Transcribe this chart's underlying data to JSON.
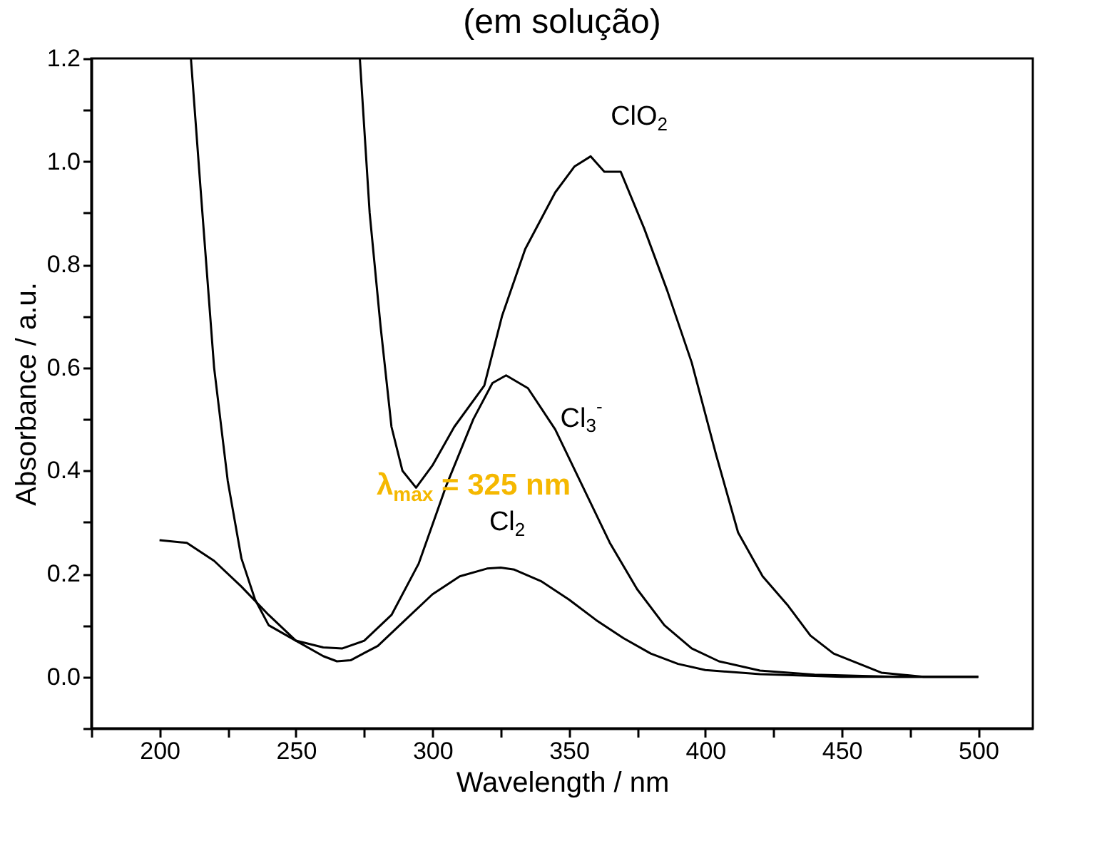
{
  "chart_data": {
    "type": "line",
    "title": "(em solução)",
    "xlabel": "Wavelength / nm",
    "ylabel": "Absorbance / a.u.",
    "xlim": [
      175,
      520
    ],
    "ylim": [
      -0.1,
      1.2
    ],
    "xticks": [
      {
        "value": 175,
        "label": null
      },
      200,
      {
        "value": 225,
        "label": null
      },
      250,
      {
        "value": 275,
        "label": null
      },
      300,
      {
        "value": 325,
        "label": null
      },
      350,
      {
        "value": 375,
        "label": null
      },
      400,
      {
        "value": 425,
        "label": null
      },
      450,
      {
        "value": 475,
        "label": null
      },
      500
    ],
    "yticks": [
      {
        "value": -0.1,
        "label": null
      },
      {
        "value": 0,
        "label": "0.0"
      },
      {
        "value": 0.1,
        "label": null
      },
      {
        "value": 0.2,
        "label": "0.2"
      },
      {
        "value": 0.3,
        "label": null
      },
      {
        "value": 0.4,
        "label": "0.4"
      },
      {
        "value": 0.5,
        "label": null
      },
      {
        "value": 0.6,
        "label": "0.6"
      },
      {
        "value": 0.7,
        "label": null
      },
      {
        "value": 0.8,
        "label": "0.8"
      },
      {
        "value": 0.9,
        "label": null
      },
      {
        "value": 1.0,
        "label": "1.0"
      },
      {
        "value": 1.1,
        "label": null
      },
      {
        "value": 1.2,
        "label": "1.2"
      }
    ],
    "marker": "none",
    "line_style": "solid",
    "series": [
      {
        "name": "Cl$_{2}$",
        "color": "#000000",
        "x": [
          200,
          210,
          220,
          230,
          240,
          250,
          260,
          265,
          270,
          280,
          290,
          300,
          310,
          320,
          325,
          330,
          340,
          350,
          360,
          370,
          380,
          390,
          400,
          420,
          450,
          500
        ],
        "values": [
          0.265,
          0.26,
          0.225,
          0.175,
          0.12,
          0.07,
          0.04,
          0.03,
          0.032,
          0.06,
          0.11,
          0.16,
          0.195,
          0.21,
          0.212,
          0.208,
          0.185,
          0.15,
          0.11,
          0.075,
          0.045,
          0.025,
          0.013,
          0.005,
          0.0,
          0.0
        ]
      },
      {
        "name": "Cl$_{3}$$^{-}$",
        "color": "#000000",
        "x": [
          211.5,
          215,
          220,
          225,
          230,
          235,
          240,
          250,
          260,
          267,
          275,
          285,
          295,
          305,
          315,
          322,
          327,
          335,
          345,
          355,
          365,
          375,
          385,
          395,
          405,
          420,
          440,
          470,
          500
        ],
        "values": [
          1.2,
          0.95,
          0.6,
          0.38,
          0.23,
          0.15,
          0.1,
          0.07,
          0.057,
          0.055,
          0.07,
          0.12,
          0.22,
          0.37,
          0.5,
          0.57,
          0.585,
          0.56,
          0.48,
          0.37,
          0.26,
          0.17,
          0.1,
          0.055,
          0.03,
          0.012,
          0.004,
          0.0,
          0.0
        ]
      },
      {
        "name": "ClO$_{2}$",
        "color": "#000000",
        "x": [
          273.4,
          277,
          281,
          285,
          289,
          294,
          300,
          308,
          319,
          325.5,
          334,
          345,
          352,
          358,
          363,
          369,
          377.6,
          386,
          395,
          404,
          412,
          421,
          430,
          438.5,
          447,
          464.5,
          480,
          500
        ],
        "values": [
          1.2,
          0.9,
          0.68,
          0.485,
          0.4,
          0.367,
          0.41,
          0.485,
          0.565,
          0.7,
          0.83,
          0.94,
          0.99,
          1.01,
          0.98,
          0.98,
          0.87,
          0.75,
          0.61,
          0.43,
          0.28,
          0.195,
          0.14,
          0.08,
          0.045,
          0.008,
          0.0,
          0.0
        ]
      }
    ],
    "annotations": [
      "λ$_{max}$ = 325 nm"
    ]
  }
}
